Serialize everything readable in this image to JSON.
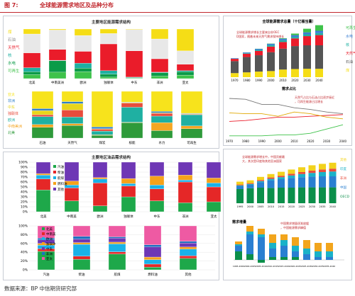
{
  "header": {
    "figure_no": "图 7:",
    "title": "全球能源需求地区及品种分布"
  },
  "footer": {
    "source": "数据来源：BP 中信期货研究部"
  },
  "colors": {
    "coal": "#f5dd16",
    "oil": "#e8e8e8",
    "gas": "#ea1c2a",
    "nuclear": "#1fb0a2",
    "hydro": "#0b9b48",
    "renew": "#3ec24a",
    "other": "#9aa0a8"
  },
  "chart_data": [
    {
      "id": "p1",
      "type": "bar",
      "stacked": true,
      "title": "主要地区能源需求结构",
      "categories": [
        "北美",
        "中南美洲",
        "欧洲",
        "独联体",
        "中东",
        "非洲",
        "亚太"
      ],
      "series": [
        {
          "name": "可再生",
          "values": [
            0.08,
            0.13,
            0.14,
            0.03,
            0.01,
            0.05,
            0.07
          ]
        },
        {
          "name": "水电",
          "values": [
            0.06,
            0.23,
            0.07,
            0.06,
            0.01,
            0.07,
            0.07
          ]
        },
        {
          "name": "核能",
          "values": [
            0.08,
            0.01,
            0.1,
            0.07,
            0.01,
            0.01,
            0.02
          ]
        },
        {
          "name": "天然气",
          "values": [
            0.3,
            0.22,
            0.24,
            0.54,
            0.53,
            0.27,
            0.13
          ]
        },
        {
          "name": "石油",
          "values": [
            0.38,
            0.39,
            0.32,
            0.21,
            0.43,
            0.4,
            0.27
          ]
        },
        {
          "name": "煤",
          "values": [
            0.1,
            0.02,
            0.13,
            0.09,
            0.01,
            0.2,
            0.44
          ]
        }
      ],
      "legend_labels": [
        "煤",
        "石油",
        "天然气",
        "核",
        "水电",
        "可再生"
      ],
      "ylim": [
        0,
        1
      ]
    },
    {
      "id": "p2",
      "type": "bar",
      "stacked": true,
      "categories": [
        "石油",
        "天然气",
        "煤炭",
        "核能",
        "水力",
        "可再生"
      ],
      "series": [
        {
          "name": "北美",
          "values": [
            0.23,
            0.27,
            0.06,
            0.33,
            0.16,
            0.2
          ]
        },
        {
          "name": "中南美洲",
          "values": [
            0.06,
            0.04,
            0.01,
            0.01,
            0.17,
            0.06
          ]
        },
        {
          "name": "欧洲",
          "values": [
            0.17,
            0.14,
            0.08,
            0.32,
            0.14,
            0.24
          ]
        },
        {
          "name": "独联体",
          "values": [
            0.04,
            0.15,
            0.04,
            0.09,
            0.06,
            0.01
          ]
        },
        {
          "name": "中东",
          "values": [
            0.09,
            0.14,
            0.01,
            0.01,
            0.01,
            0.01
          ]
        },
        {
          "name": "非洲",
          "values": [
            0.04,
            0.04,
            0.04,
            0.01,
            0.03,
            0.01
          ]
        },
        {
          "name": "亚太",
          "values": [
            0.37,
            0.22,
            0.76,
            0.23,
            0.43,
            0.47
          ]
        }
      ],
      "legend_labels": [
        "亚太",
        "非洲",
        "中东",
        "独联体",
        "欧洲",
        "中南美洲",
        "北美"
      ]
    },
    {
      "id": "p3",
      "type": "bar",
      "stacked": true,
      "title": "主要地区油品需求结构",
      "categories": [
        "北美",
        "中南美",
        "欧洲",
        "独联体",
        "中东",
        "非洲",
        "亚太"
      ],
      "series": [
        {
          "name": "汽油",
          "values": [
            0.44,
            0.22,
            0.12,
            0.3,
            0.22,
            0.18,
            0.2
          ]
        },
        {
          "name": "柴油",
          "values": [
            0.22,
            0.26,
            0.46,
            0.22,
            0.24,
            0.42,
            0.3
          ]
        },
        {
          "name": "航煤",
          "values": [
            0.08,
            0.06,
            0.08,
            0.05,
            0.08,
            0.04,
            0.08
          ]
        },
        {
          "name": "燃料油",
          "values": [
            0.03,
            0.08,
            0.03,
            0.1,
            0.18,
            0.1,
            0.1
          ]
        },
        {
          "name": "其他",
          "values": [
            0.23,
            0.38,
            0.31,
            0.33,
            0.28,
            0.26,
            0.32
          ]
        }
      ],
      "legend_labels": [
        "汽油",
        "柴油",
        "航煤",
        "燃料油",
        "其他"
      ],
      "yticks": [
        "0%",
        "10%",
        "20%",
        "30%",
        "40%",
        "50%",
        "60%",
        "70%",
        "80%",
        "90%",
        "100%"
      ],
      "ylim": [
        0,
        1
      ]
    },
    {
      "id": "p4",
      "type": "bar",
      "stacked": true,
      "categories": [
        "汽油",
        "柴油",
        "航煤",
        "燃料油",
        "其他"
      ],
      "series": [
        {
          "name": "北美",
          "values": [
            0.42,
            0.24,
            0.36,
            0.06,
            0.26
          ]
        },
        {
          "name": "中南美",
          "values": [
            0.06,
            0.07,
            0.05,
            0.07,
            0.06
          ]
        },
        {
          "name": "欧洲",
          "values": [
            0.08,
            0.27,
            0.18,
            0.1,
            0.15
          ]
        },
        {
          "name": "独联体",
          "values": [
            0.04,
            0.04,
            0.04,
            0.06,
            0.05
          ]
        },
        {
          "name": "中东",
          "values": [
            0.08,
            0.08,
            0.09,
            0.23,
            0.09
          ]
        },
        {
          "name": "非洲",
          "values": [
            0.04,
            0.06,
            0.03,
            0.05,
            0.04
          ]
        },
        {
          "name": "亚太",
          "values": [
            0.28,
            0.24,
            0.25,
            0.43,
            0.35
          ]
        }
      ],
      "legend_labels": [
        "北美",
        "中南美",
        "欧洲",
        "独联体",
        "中东",
        "非洲",
        "亚太"
      ],
      "yticks": [
        "0%",
        "20%",
        "40%",
        "60%",
        "80%",
        "100%"
      ],
      "ylim": [
        0,
        1
      ]
    },
    {
      "id": "p5",
      "type": "bar",
      "stacked": true,
      "title": "全球能源需求总量（十亿桶当量）",
      "x": [
        "1970",
        "1980",
        "1990",
        "2000",
        "2010",
        "2020",
        "2030",
        "2040"
      ],
      "series": [
        {
          "name": "煤",
          "values": [
            16,
            19,
            22,
            24,
            30,
            32,
            33,
            33
          ]
        },
        {
          "name": "石油",
          "values": [
            47,
            60,
            64,
            74,
            82,
            90,
            92,
            92
          ]
        },
        {
          "name": "天然气",
          "values": [
            9,
            13,
            17,
            22,
            26,
            30,
            36,
            40
          ]
        },
        {
          "name": "核",
          "values": [
            0.5,
            2,
            4,
            6,
            7,
            6,
            7,
            8
          ]
        },
        {
          "name": "水电",
          "values": [
            2,
            3,
            4,
            5,
            6,
            7,
            8,
            9
          ]
        },
        {
          "name": "可再生",
          "values": [
            0,
            0.3,
            0.5,
            1,
            2,
            6,
            14,
            22
          ]
        }
      ],
      "legend_labels": [
        "可再生",
        "水电",
        "核",
        "天然气",
        "石油",
        "煤"
      ],
      "note": "全球能源需求增长主要来自非OECD国家，随着未来天然气需求保持增长"
    },
    {
      "id": "p6",
      "type": "line",
      "title": "需求占比",
      "x": [
        "1970",
        "1980",
        "1990",
        "2000",
        "2010",
        "2020",
        "2030",
        "2040"
      ],
      "series": [
        {
          "name": "石油",
          "values": [
            0.45,
            0.44,
            0.38,
            0.38,
            0.34,
            0.32,
            0.29,
            0.27
          ]
        },
        {
          "name": "天然气",
          "values": [
            0.18,
            0.19,
            0.21,
            0.23,
            0.23,
            0.24,
            0.25,
            0.26
          ]
        },
        {
          "name": "煤",
          "values": [
            0.28,
            0.27,
            0.27,
            0.24,
            0.29,
            0.27,
            0.23,
            0.21
          ]
        },
        {
          "name": "可再生",
          "values": [
            0.01,
            0.01,
            0.01,
            0.02,
            0.02,
            0.04,
            0.09,
            0.14
          ]
        }
      ],
      "note": "天然气占比与石油占比逐步接近，可再生能源占比增长"
    },
    {
      "id": "p7",
      "type": "bar",
      "stacked": true,
      "x": [
        "1995",
        "2000",
        "2005",
        "2010",
        "2015",
        "2020",
        "2025",
        "2030",
        "2035",
        "2040"
      ],
      "series": [
        {
          "name": "OECD",
          "values": [
            5,
            5.3,
            5.5,
            5.4,
            5.5,
            5.5,
            5.6,
            5.6,
            5.6,
            5.6
          ]
        },
        {
          "name": "中国",
          "values": [
            1,
            1.2,
            1.9,
            2.7,
            3,
            3.4,
            3.6,
            3.8,
            3.9,
            3.9
          ]
        },
        {
          "name": "印度",
          "values": [
            0.3,
            0.3,
            0.4,
            0.5,
            0.7,
            0.9,
            1.1,
            1.3,
            1.5,
            1.7
          ]
        },
        {
          "name": "非洲",
          "values": [
            0.3,
            0.3,
            0.4,
            0.5,
            0.5,
            0.6,
            0.7,
            0.8,
            0.9,
            1
          ]
        },
        {
          "name": "其他",
          "values": [
            1,
            1,
            1.1,
            1.2,
            1.4,
            1.5,
            1.7,
            1.9,
            2,
            2.1
          ]
        }
      ],
      "legend_labels": [
        "其他",
        "印度",
        "非洲",
        "中国",
        "OECD"
      ],
      "note": "全球能源需求增长中，中国贡献最大，其次是印度和其他亚洲国家"
    },
    {
      "id": "p8",
      "type": "bar",
      "stacked": true,
      "title": "需求增量",
      "x": [
        "1995-2000",
        "2000-2005",
        "2005-2010",
        "2010-2015",
        "2015-2020",
        "2020-2025",
        "2025-2030",
        "2030-2035",
        "2035-2040"
      ],
      "series": [
        {
          "name": "OECD",
          "values": [
            0.3,
            0.2,
            -0.1,
            0.1,
            0.1,
            0.1,
            0,
            0,
            0
          ]
        },
        {
          "name": "中国",
          "values": [
            0.2,
            0.7,
            0.8,
            0.3,
            0.4,
            0.2,
            0.2,
            0.1,
            0.1
          ]
        },
        {
          "name": "印度",
          "values": [
            0.05,
            0.1,
            0.1,
            0.2,
            0.2,
            0.2,
            0.2,
            0.2,
            0.2
          ]
        },
        {
          "name": "其他",
          "values": [
            0.1,
            0.2,
            0.2,
            0.3,
            0.2,
            0.3,
            0.3,
            0.3,
            0.3
          ]
        }
      ],
      "note": "中国需求增量逐渐放缓，中国能源需求峰值"
    }
  ]
}
